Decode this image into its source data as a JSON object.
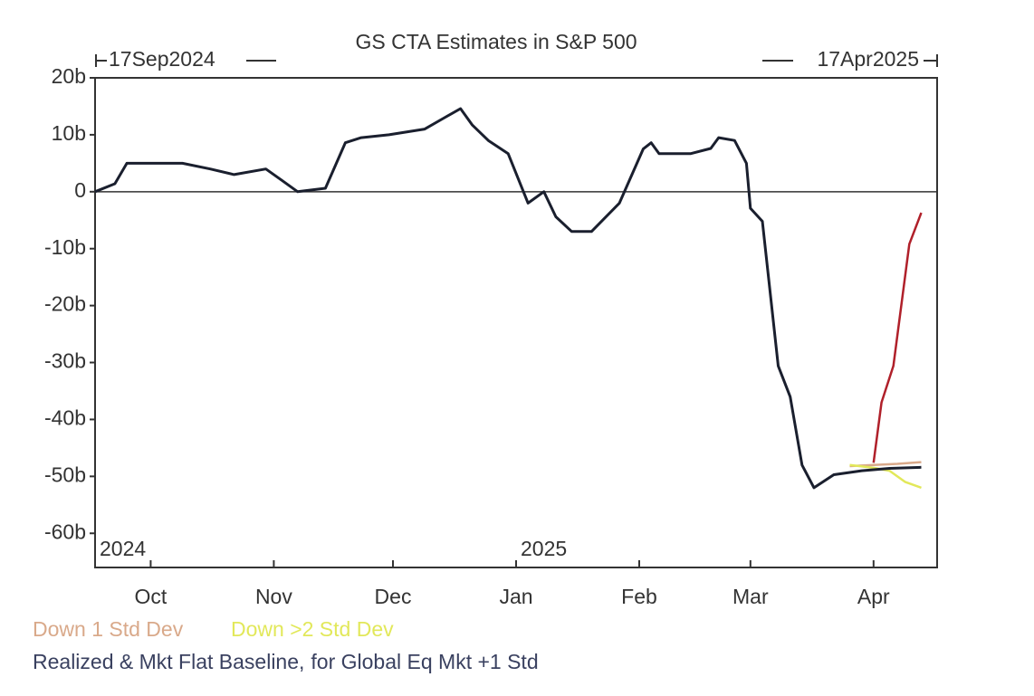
{
  "chart_data": {
    "type": "line",
    "title": "GS CTA Estimates in S&P 500",
    "annotations": {
      "start": "17Sep2024",
      "end": "17Apr2025",
      "year1": "2024",
      "year2": "2025"
    },
    "xlim": [
      "2024-09-17",
      "2025-04-17"
    ],
    "xticks": [
      {
        "value": "2024-10-01",
        "label": "Oct"
      },
      {
        "value": "2024-11-01",
        "label": "Nov"
      },
      {
        "value": "2024-12-01",
        "label": "Dec"
      },
      {
        "value": "2025-01-01",
        "label": "Jan"
      },
      {
        "value": "2025-02-01",
        "label": "Feb"
      },
      {
        "value": "2025-03-01",
        "label": "Mar"
      },
      {
        "value": "2025-04-01",
        "label": "Apr"
      }
    ],
    "ylim": [
      -66,
      20
    ],
    "yticks": [
      {
        "value": 20,
        "label": "20b"
      },
      {
        "value": 10,
        "label": "10b"
      },
      0,
      {
        "value": -10,
        "label": "-10b"
      },
      {
        "value": -20,
        "label": "-20b"
      },
      {
        "value": -30,
        "label": "-30b"
      },
      {
        "value": -40,
        "label": "-40b"
      },
      {
        "value": -50,
        "label": "-50b"
      },
      {
        "value": -60,
        "label": "-60b"
      }
    ],
    "zero_line": true,
    "series": [
      {
        "name": "Realized & Mkt Flat Baseline,",
        "color": "#1a1f2e",
        "x": [
          "2024-09-17",
          "2024-09-22",
          "2024-09-25",
          "2024-10-09",
          "2024-10-16",
          "2024-10-22",
          "2024-10-30",
          "2024-11-03",
          "2024-11-07",
          "2024-11-14",
          "2024-11-19",
          "2024-11-23",
          "2024-11-30",
          "2024-12-09",
          "2024-12-14",
          "2024-12-18",
          "2024-12-21",
          "2024-12-25",
          "2024-12-30",
          "2025-01-04",
          "2025-01-08",
          "2025-01-11",
          "2025-01-15",
          "2025-01-20",
          "2025-01-27",
          "2025-02-02",
          "2025-02-04",
          "2025-02-06",
          "2025-02-14",
          "2025-02-19",
          "2025-02-21",
          "2025-02-25",
          "2025-02-28",
          "2025-03-01",
          "2025-03-04",
          "2025-03-08",
          "2025-03-11",
          "2025-03-14",
          "2025-03-17",
          "2025-03-22",
          "2025-03-29",
          "2025-04-05",
          "2025-04-13"
        ],
        "values": [
          0,
          1.4,
          5,
          5,
          4,
          3,
          4,
          2,
          0,
          0.6,
          8.6,
          9.5,
          10,
          11,
          13,
          14.6,
          11.7,
          9,
          6.7,
          -2,
          0,
          -4.4,
          -7,
          -7,
          -2,
          7.5,
          8.6,
          6.7,
          6.7,
          7.6,
          9.5,
          9,
          5,
          -2.9,
          -5.2,
          -30.6,
          -36,
          -48,
          -52,
          -49.7,
          -49,
          -48.6,
          -48.4
        ]
      },
      {
        "name": "for Global Eq Mkt +1 Std",
        "color": "#b0202a",
        "x": [
          "2025-04-01",
          "2025-04-03",
          "2025-04-06",
          "2025-04-10",
          "2025-04-13"
        ],
        "values": [
          -47.6,
          -37,
          -30.6,
          -9.2,
          -3.7
        ]
      },
      {
        "name": "Down 1 Std Dev",
        "color": "#d9a98a",
        "x": [
          "2025-03-26",
          "2025-04-01",
          "2025-04-07",
          "2025-04-13"
        ],
        "values": [
          -48.2,
          -48,
          -47.8,
          -47.5
        ]
      },
      {
        "name": "Down >2 Std Dev",
        "color": "#e2e85a",
        "x": [
          "2025-03-26",
          "2025-04-01",
          "2025-04-05",
          "2025-04-09",
          "2025-04-13"
        ],
        "values": [
          -48,
          -48.5,
          -49,
          -51,
          -52
        ]
      }
    ]
  }
}
